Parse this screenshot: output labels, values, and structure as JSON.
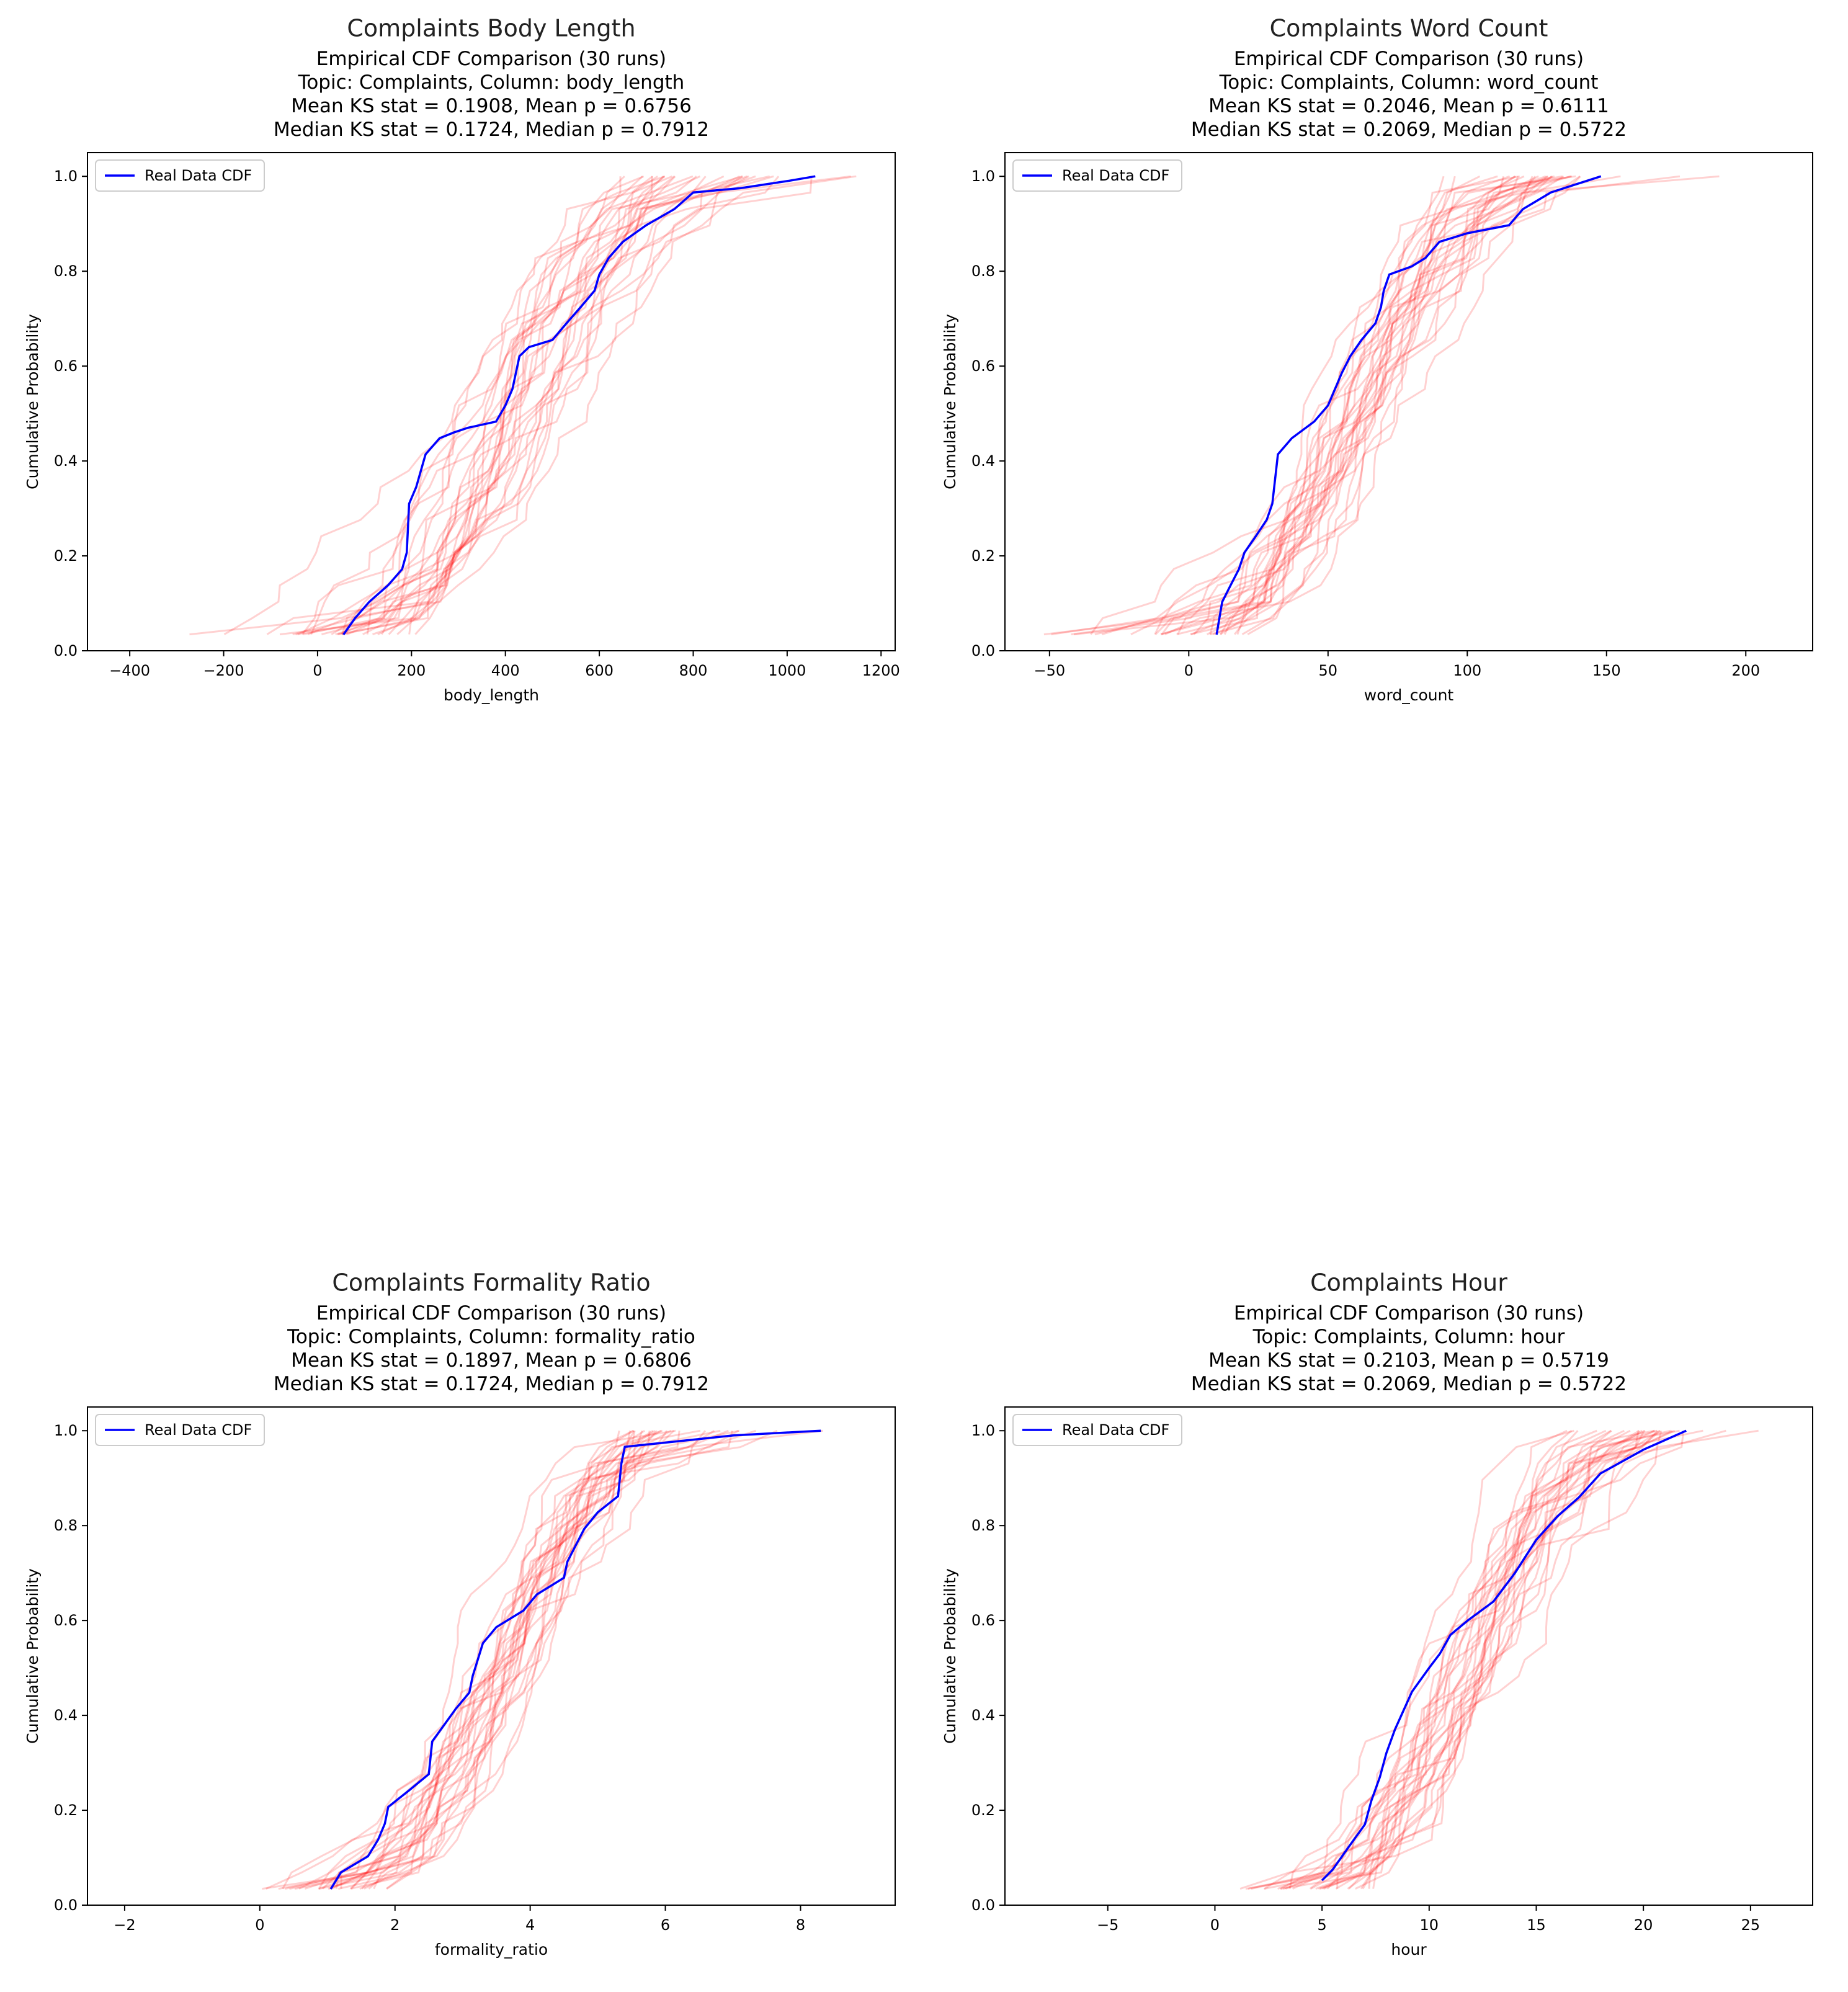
{
  "chart_data": [
    {
      "type": "line",
      "suptitle": "Complaints Body Length",
      "title_lines": [
        "Empirical CDF Comparison (30 runs)",
        "Topic: Complaints, Column: body_length",
        "Mean KS stat = 0.1908, Mean p = 0.6756",
        "Median KS stat = 0.1724, Median p = 0.7912"
      ],
      "xlabel": "body_length",
      "ylabel": "Cumulative Probability",
      "legend": "Real Data CDF",
      "legend_position": "upper-left",
      "xlim": [
        -490,
        1230
      ],
      "ylim": [
        -0.0,
        1.05
      ],
      "xticks": [
        -400,
        -200,
        0,
        200,
        400,
        600,
        800,
        1000,
        1200
      ],
      "xtick_labels": [
        "−400",
        "−200",
        "0",
        "200",
        "400",
        "600",
        "800",
        "1000",
        "1200"
      ],
      "yticks": [
        0.0,
        0.2,
        0.4,
        0.6,
        0.8,
        1.0
      ],
      "ytick_labels": [
        "0.0",
        "0.2",
        "0.4",
        "0.6",
        "0.8",
        "1.0"
      ],
      "synthetic_runs": 30,
      "synthetic_range": [
        -430,
        1200
      ],
      "synthetic_center": 420,
      "synthetic_spread": 190,
      "real_series": {
        "name": "Real Data CDF",
        "x": [
          55,
          80,
          110,
          150,
          180,
          190,
          195,
          210,
          230,
          260,
          290,
          320,
          380,
          400,
          415,
          430,
          450,
          500,
          530,
          560,
          590,
          600,
          620,
          650,
          700,
          760,
          800,
          900,
          1000,
          1060
        ],
        "y": [
          0.034,
          0.069,
          0.103,
          0.138,
          0.172,
          0.207,
          0.31,
          0.345,
          0.414,
          0.448,
          0.46,
          0.47,
          0.483,
          0.517,
          0.552,
          0.621,
          0.64,
          0.655,
          0.69,
          0.724,
          0.759,
          0.793,
          0.828,
          0.862,
          0.897,
          0.931,
          0.966,
          0.975,
          0.99,
          1.0
        ]
      },
      "colors": {
        "real": "#0000ff",
        "synthetic": "#ff0000"
      }
    },
    {
      "type": "line",
      "suptitle": "Complaints Word Count",
      "title_lines": [
        "Empirical CDF Comparison (30 runs)",
        "Topic: Complaints, Column: word_count",
        "Mean KS stat = 0.2046, Mean p = 0.6111",
        "Median KS stat = 0.2069, Median p = 0.5722"
      ],
      "xlabel": "word_count",
      "ylabel": "Cumulative Probability",
      "legend": "Real Data CDF",
      "legend_position": "upper-left",
      "xlim": [
        -66,
        224
      ],
      "ylim": [
        -0.0,
        1.05
      ],
      "xticks": [
        -50,
        0,
        50,
        100,
        150,
        200
      ],
      "xtick_labels": [
        "−50",
        "0",
        "50",
        "100",
        "150",
        "200"
      ],
      "yticks": [
        0.0,
        0.2,
        0.4,
        0.6,
        0.8,
        1.0
      ],
      "ytick_labels": [
        "0.0",
        "0.2",
        "0.4",
        "0.6",
        "0.8",
        "1.0"
      ],
      "synthetic_runs": 30,
      "synthetic_range": [
        -52,
        210
      ],
      "synthetic_center": 62,
      "synthetic_spread": 32,
      "real_series": {
        "name": "Real Data CDF",
        "x": [
          10,
          11,
          12,
          15,
          18,
          20,
          24,
          28,
          30,
          32,
          37,
          45,
          50,
          55,
          58,
          62,
          67,
          69,
          70,
          72,
          80,
          85,
          90,
          100,
          115,
          120,
          130,
          140,
          148
        ],
        "y": [
          0.034,
          0.069,
          0.103,
          0.138,
          0.172,
          0.207,
          0.241,
          0.276,
          0.31,
          0.414,
          0.448,
          0.483,
          0.517,
          0.586,
          0.621,
          0.655,
          0.69,
          0.724,
          0.759,
          0.793,
          0.81,
          0.828,
          0.862,
          0.88,
          0.897,
          0.931,
          0.966,
          0.985,
          1.0
        ]
      },
      "colors": {
        "real": "#0000ff",
        "synthetic": "#ff0000"
      }
    },
    {
      "type": "line",
      "suptitle": "Complaints Formality Ratio",
      "title_lines": [
        "Empirical CDF Comparison (30 runs)",
        "Topic: Complaints, Column: formality_ratio",
        "Mean KS stat = 0.1897, Mean p = 0.6806",
        "Median KS stat = 0.1724, Median p = 0.7912"
      ],
      "xlabel": "formality_ratio",
      "ylabel": "Cumulative Probability",
      "legend": "Real Data CDF",
      "legend_position": "upper-left",
      "xlim": [
        -2.55,
        9.4
      ],
      "ylim": [
        -0.0,
        1.05
      ],
      "xticks": [
        -2,
        0,
        2,
        4,
        6,
        8
      ],
      "xtick_labels": [
        "−2",
        "0",
        "2",
        "4",
        "6",
        "8"
      ],
      "yticks": [
        0.0,
        0.2,
        0.4,
        0.6,
        0.8,
        1.0
      ],
      "ytick_labels": [
        "0.0",
        "0.2",
        "0.4",
        "0.6",
        "0.8",
        "1.0"
      ],
      "synthetic_runs": 30,
      "synthetic_range": [
        -2.0,
        8.8
      ],
      "synthetic_center": 3.7,
      "synthetic_spread": 1.25,
      "real_series": {
        "name": "Real Data CDF",
        "x": [
          1.05,
          1.2,
          1.6,
          1.75,
          1.85,
          1.9,
          2.2,
          2.5,
          2.55,
          2.9,
          3.1,
          3.15,
          3.3,
          3.5,
          3.9,
          4.1,
          4.5,
          4.55,
          4.8,
          5.0,
          5.3,
          5.35,
          5.4,
          6.0,
          7.0,
          8.3
        ],
        "y": [
          0.034,
          0.069,
          0.103,
          0.138,
          0.172,
          0.207,
          0.241,
          0.276,
          0.345,
          0.414,
          0.448,
          0.483,
          0.552,
          0.586,
          0.621,
          0.655,
          0.69,
          0.724,
          0.793,
          0.828,
          0.862,
          0.931,
          0.966,
          0.975,
          0.99,
          1.0
        ]
      },
      "colors": {
        "real": "#0000ff",
        "synthetic": "#ff0000"
      }
    },
    {
      "type": "line",
      "suptitle": "Complaints Hour",
      "title_lines": [
        "Empirical CDF Comparison (30 runs)",
        "Topic: Complaints, Column: hour",
        "Mean KS stat = 0.2103, Mean p = 0.5719",
        "Median KS stat = 0.2069, Median p = 0.5722"
      ],
      "xlabel": "hour",
      "ylabel": "Cumulative Probability",
      "legend": "Real Data CDF",
      "legend_position": "upper-left",
      "xlim": [
        -9.8,
        27.9
      ],
      "ylim": [
        -0.0,
        1.05
      ],
      "xticks": [
        -5,
        0,
        5,
        10,
        15,
        20,
        25
      ],
      "xtick_labels": [
        "−5",
        "0",
        "5",
        "10",
        "15",
        "20",
        "25"
      ],
      "yticks": [
        0.0,
        0.2,
        0.4,
        0.6,
        0.8,
        1.0
      ],
      "ytick_labels": [
        "0.0",
        "0.2",
        "0.4",
        "0.6",
        "0.8",
        "1.0"
      ],
      "synthetic_runs": 30,
      "synthetic_range": [
        -8,
        26.5
      ],
      "synthetic_center": 11.8,
      "synthetic_spread": 4.0,
      "real_series": {
        "name": "Real Data CDF",
        "x": [
          5,
          5.5,
          6.2,
          7,
          7.3,
          7.7,
          8,
          8.4,
          8.8,
          9.2,
          10,
          10.5,
          11,
          11.8,
          13,
          14,
          15,
          16,
          17,
          18,
          20,
          22
        ],
        "y": [
          0.052,
          0.075,
          0.12,
          0.17,
          0.22,
          0.27,
          0.32,
          0.37,
          0.41,
          0.45,
          0.5,
          0.53,
          0.57,
          0.6,
          0.64,
          0.7,
          0.77,
          0.82,
          0.86,
          0.91,
          0.96,
          1.0
        ]
      },
      "colors": {
        "real": "#0000ff",
        "synthetic": "#ff0000"
      }
    }
  ]
}
